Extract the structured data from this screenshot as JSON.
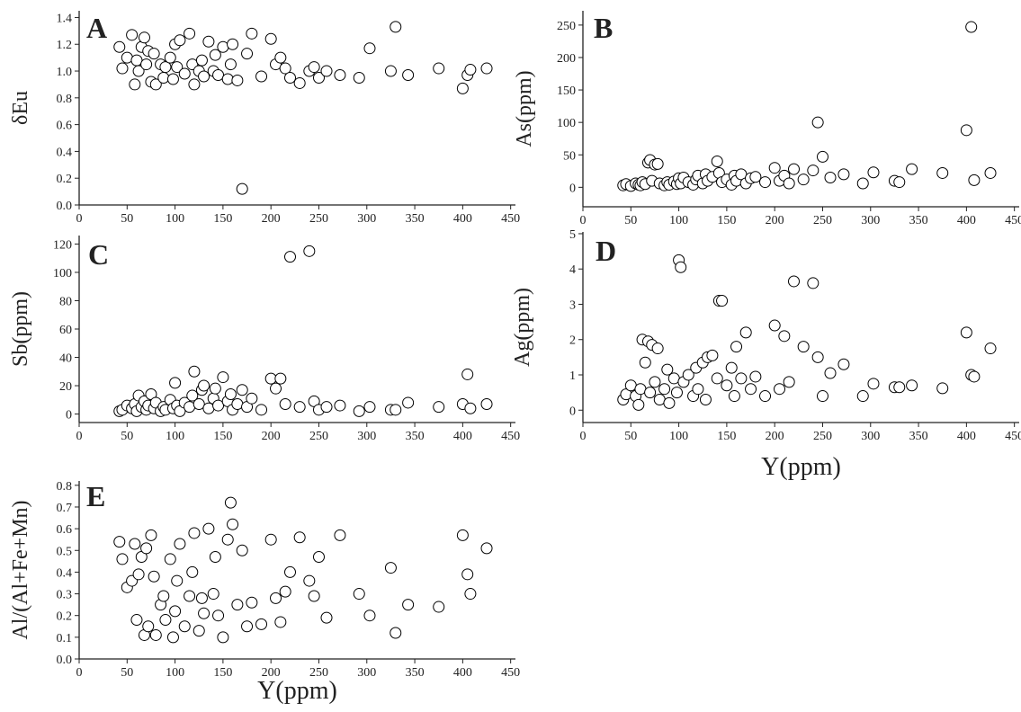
{
  "chart_data": [
    {
      "type": "scatter",
      "panel_label": "A",
      "y_label": "δEu",
      "color": "#000000",
      "x": [
        42,
        45,
        50,
        55,
        58,
        60,
        62,
        65,
        68,
        70,
        72,
        75,
        78,
        80,
        85,
        88,
        90,
        95,
        98,
        100,
        102,
        105,
        110,
        115,
        118,
        120,
        125,
        128,
        130,
        135,
        140,
        142,
        145,
        150,
        155,
        158,
        160,
        165,
        170,
        175,
        180,
        190,
        200,
        205,
        210,
        215,
        220,
        230,
        240,
        245,
        250,
        258,
        272,
        292,
        303,
        325,
        330,
        343,
        375,
        400,
        405,
        408,
        425
      ],
      "values": [
        1.18,
        1.02,
        1.1,
        1.27,
        0.9,
        1.08,
        1.0,
        1.18,
        1.25,
        1.05,
        1.15,
        0.92,
        1.13,
        0.9,
        1.05,
        0.95,
        1.03,
        1.1,
        0.94,
        1.2,
        1.03,
        1.23,
        0.98,
        1.28,
        1.05,
        0.9,
        1.0,
        1.08,
        0.96,
        1.22,
        1.0,
        1.12,
        0.97,
        1.18,
        0.94,
        1.05,
        1.2,
        0.93,
        0.12,
        1.13,
        1.28,
        0.96,
        1.24,
        1.05,
        1.1,
        1.02,
        0.95,
        0.91,
        1.0,
        1.03,
        0.95,
        1.0,
        0.97,
        0.95,
        1.17,
        1.0,
        1.33,
        0.97,
        1.02,
        0.87,
        0.97,
        1.01,
        1.02
      ],
      "xlim": [
        0,
        455
      ],
      "xticks": [
        0,
        50,
        100,
        150,
        200,
        250,
        300,
        350,
        400,
        450
      ],
      "ylim": [
        0,
        1.45
      ],
      "yticks": [
        {
          "value": 0,
          "label": "0.0"
        },
        0.2,
        0.4,
        0.6,
        0.8,
        {
          "value": 1,
          "label": "1.0"
        },
        1.2,
        1.4
      ]
    },
    {
      "type": "scatter",
      "panel_label": "B",
      "y_label": "As(ppm)",
      "color": "#000000",
      "x": [
        42,
        45,
        50,
        55,
        58,
        60,
        62,
        65,
        68,
        70,
        72,
        75,
        78,
        80,
        85,
        88,
        90,
        95,
        98,
        100,
        102,
        105,
        110,
        115,
        118,
        120,
        125,
        128,
        130,
        135,
        140,
        142,
        145,
        150,
        155,
        158,
        160,
        165,
        170,
        175,
        180,
        190,
        200,
        205,
        210,
        215,
        220,
        230,
        240,
        245,
        250,
        258,
        272,
        292,
        303,
        325,
        330,
        343,
        375,
        400,
        405,
        408,
        425
      ],
      "values": [
        3,
        5,
        2,
        6,
        4,
        3,
        8,
        5,
        38,
        42,
        10,
        35,
        36,
        6,
        3,
        8,
        4,
        9,
        5,
        14,
        6,
        15,
        8,
        4,
        12,
        18,
        6,
        20,
        10,
        16,
        40,
        22,
        8,
        12,
        4,
        18,
        10,
        20,
        6,
        14,
        16,
        8,
        30,
        10,
        18,
        6,
        28,
        12,
        26,
        100,
        47,
        15,
        20,
        6,
        23,
        10,
        8,
        28,
        22,
        88,
        247,
        11,
        22
      ],
      "xlim": [
        0,
        455
      ],
      "xticks": [
        0,
        50,
        100,
        150,
        200,
        250,
        300,
        350,
        400,
        450
      ],
      "ylim": [
        -30,
        272
      ],
      "yticks": [
        0,
        50,
        100,
        150,
        200,
        250
      ]
    },
    {
      "type": "scatter",
      "panel_label": "C",
      "y_label": "Sb(ppm)",
      "color": "#000000",
      "x": [
        42,
        45,
        50,
        55,
        58,
        60,
        62,
        65,
        68,
        70,
        72,
        75,
        78,
        80,
        85,
        88,
        90,
        95,
        98,
        100,
        102,
        105,
        110,
        115,
        118,
        120,
        125,
        128,
        130,
        135,
        140,
        142,
        145,
        150,
        155,
        158,
        160,
        165,
        170,
        175,
        180,
        190,
        200,
        205,
        210,
        215,
        220,
        230,
        240,
        245,
        250,
        258,
        272,
        292,
        303,
        325,
        330,
        343,
        375,
        400,
        405,
        408,
        425
      ],
      "values": [
        2,
        3,
        6,
        4,
        7,
        2,
        13,
        5,
        9,
        3,
        6,
        14,
        4,
        8,
        2,
        5,
        3,
        10,
        4,
        22,
        6,
        2,
        8,
        5,
        13,
        30,
        7,
        17,
        20,
        4,
        11,
        18,
        6,
        26,
        9,
        14,
        3,
        7,
        17,
        5,
        11,
        3,
        25,
        18,
        25,
        7,
        111,
        5,
        115,
        9,
        3,
        5,
        6,
        2,
        5,
        3,
        3,
        8,
        5,
        7,
        28,
        4,
        7
      ],
      "xlim": [
        0,
        455
      ],
      "xticks": [
        0,
        50,
        100,
        150,
        200,
        250,
        300,
        350,
        400,
        450
      ],
      "ylim": [
        -6,
        126
      ],
      "yticks": [
        0,
        20,
        40,
        60,
        80,
        100,
        120
      ]
    },
    {
      "type": "scatter",
      "panel_label": "D",
      "y_label": "Ag(ppm)",
      "x_label": "Y(ppm)",
      "color": "#000000",
      "x": [
        42,
        45,
        50,
        55,
        58,
        60,
        62,
        65,
        68,
        70,
        72,
        75,
        78,
        80,
        85,
        88,
        90,
        95,
        98,
        100,
        102,
        105,
        110,
        115,
        118,
        120,
        125,
        128,
        130,
        135,
        140,
        142,
        145,
        150,
        155,
        158,
        160,
        165,
        170,
        175,
        180,
        190,
        200,
        205,
        210,
        215,
        220,
        230,
        240,
        245,
        250,
        258,
        272,
        292,
        303,
        325,
        330,
        343,
        375,
        400,
        405,
        408,
        425
      ],
      "values": [
        0.3,
        0.45,
        0.7,
        0.4,
        0.15,
        0.6,
        2.0,
        1.35,
        1.95,
        0.5,
        1.85,
        0.8,
        1.75,
        0.3,
        0.6,
        1.15,
        0.2,
        0.9,
        0.5,
        4.25,
        4.05,
        0.8,
        1.0,
        0.4,
        1.2,
        0.6,
        1.35,
        0.3,
        1.5,
        1.55,
        0.9,
        3.1,
        3.1,
        0.7,
        1.2,
        0.4,
        1.8,
        0.9,
        2.2,
        0.6,
        0.95,
        0.4,
        2.4,
        0.6,
        2.1,
        0.8,
        3.65,
        1.8,
        3.6,
        1.5,
        0.4,
        1.05,
        1.3,
        0.4,
        0.75,
        0.65,
        0.65,
        0.7,
        0.62,
        2.2,
        1.0,
        0.95,
        1.75
      ],
      "xlim": [
        0,
        455
      ],
      "xticks": [
        0,
        50,
        100,
        150,
        200,
        250,
        300,
        350,
        400,
        450
      ],
      "ylim": [
        -0.35,
        5.05
      ],
      "yticks": [
        0,
        1,
        2,
        3,
        4,
        5
      ]
    },
    {
      "type": "scatter",
      "panel_label": "E",
      "y_label": "Al/(Al+Fe+Mn)",
      "x_label": "Y(ppm)",
      "color": "#000000",
      "x": [
        42,
        45,
        50,
        55,
        58,
        60,
        62,
        65,
        68,
        70,
        72,
        75,
        78,
        80,
        85,
        88,
        90,
        95,
        98,
        100,
        102,
        105,
        110,
        115,
        118,
        120,
        125,
        128,
        130,
        135,
        140,
        142,
        145,
        150,
        155,
        158,
        160,
        165,
        170,
        175,
        180,
        190,
        200,
        205,
        210,
        215,
        220,
        230,
        240,
        245,
        250,
        258,
        272,
        292,
        303,
        325,
        330,
        343,
        375,
        400,
        405,
        408,
        425
      ],
      "values": [
        0.54,
        0.46,
        0.33,
        0.36,
        0.53,
        0.18,
        0.39,
        0.47,
        0.11,
        0.51,
        0.15,
        0.57,
        0.38,
        0.11,
        0.25,
        0.29,
        0.18,
        0.46,
        0.1,
        0.22,
        0.36,
        0.53,
        0.15,
        0.29,
        0.4,
        0.58,
        0.13,
        0.28,
        0.21,
        0.6,
        0.3,
        0.47,
        0.2,
        0.1,
        0.55,
        0.72,
        0.62,
        0.25,
        0.5,
        0.15,
        0.26,
        0.16,
        0.55,
        0.28,
        0.17,
        0.31,
        0.4,
        0.56,
        0.36,
        0.29,
        0.47,
        0.19,
        0.57,
        0.3,
        0.2,
        0.42,
        0.12,
        0.25,
        0.24,
        0.57,
        0.39,
        0.3,
        0.51
      ],
      "xlim": [
        0,
        455
      ],
      "xticks": [
        0,
        50,
        100,
        150,
        200,
        250,
        300,
        350,
        400,
        450
      ],
      "ylim": [
        0,
        0.82
      ],
      "yticks": [
        {
          "value": 0,
          "label": "0.0"
        },
        0.1,
        0.2,
        0.3,
        0.4,
        0.5,
        0.6,
        0.7,
        0.8
      ]
    }
  ]
}
